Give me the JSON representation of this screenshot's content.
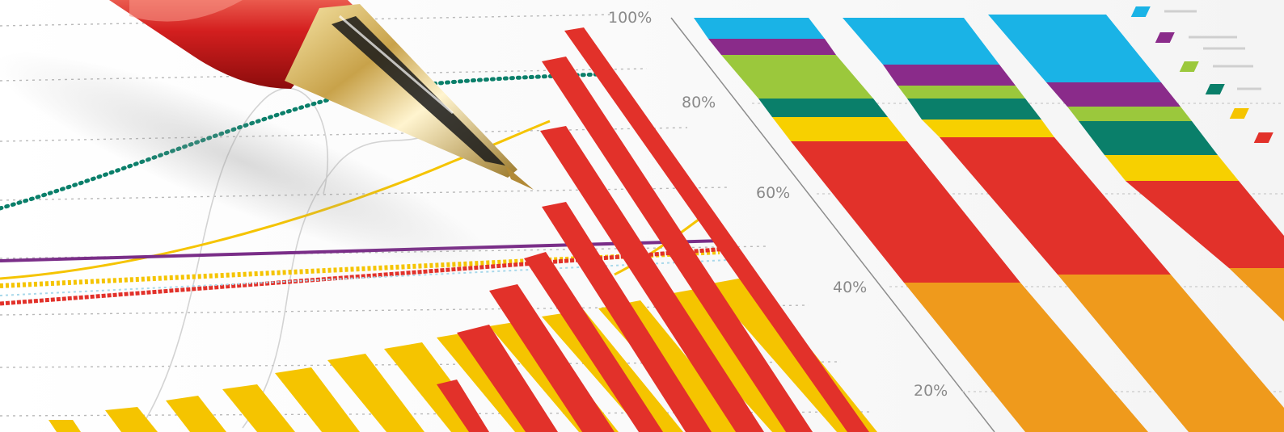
{
  "photo": {
    "subject": "pen-on-financial-charts",
    "chart_data": {
      "type": "bar",
      "y_axis_ticks": [
        "100%",
        "80%",
        "60%",
        "40%",
        "20%"
      ],
      "stacked_bars": {
        "segment_colors": [
          "#ef9a1c",
          "#e2312a",
          "#f7d000",
          "#0a7f6a",
          "#9bc83c",
          "#8a2b8a",
          "#1ab3e6"
        ]
      },
      "bar_colors": [
        "#e2312a",
        "#f5c400"
      ],
      "line_colors": [
        "#0a7f6a",
        "#7a2e88",
        "#f5c400",
        "#e2312a"
      ]
    },
    "legend_swatches": [
      "#1ab3e6",
      "#8a2b8a",
      "#9bc83c",
      "#0a7f6a",
      "#f5c400",
      "#e2312a"
    ]
  }
}
